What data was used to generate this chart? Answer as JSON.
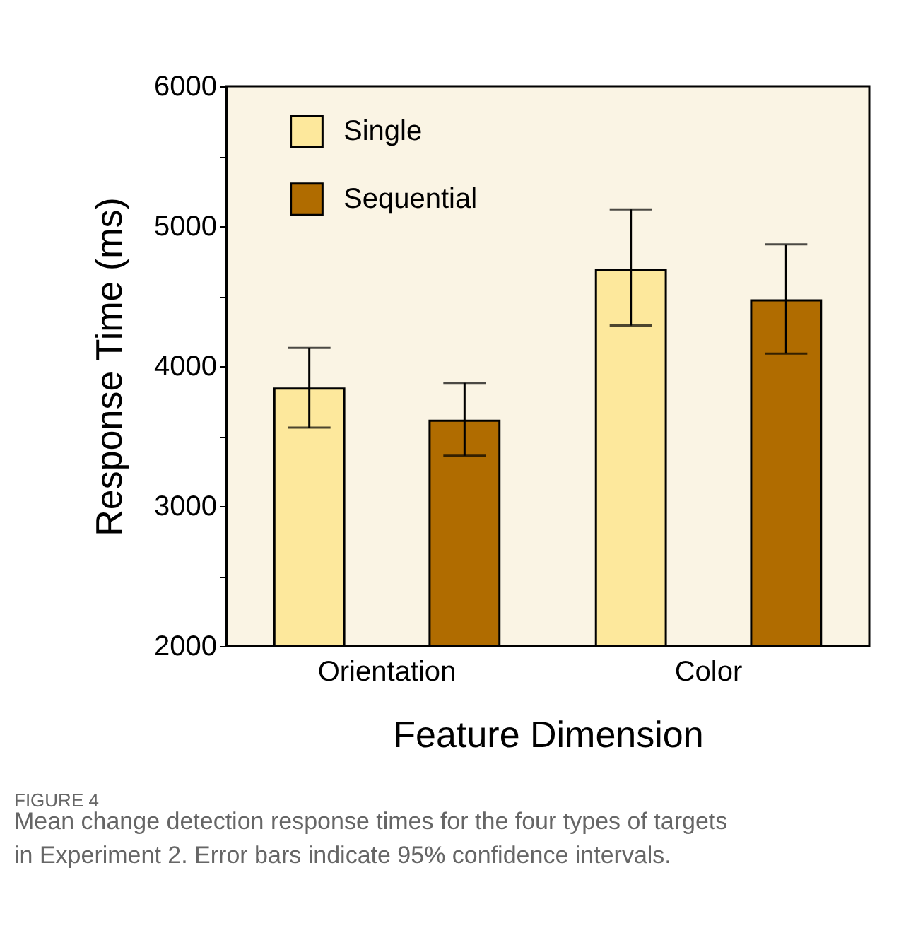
{
  "chart_data": {
    "type": "bar",
    "xlabel": "Feature Dimension",
    "ylabel": "Response Time (ms)",
    "categories": [
      "Orientation",
      "Color"
    ],
    "series": [
      {
        "name": "Single",
        "color": "#fde89c",
        "values": [
          3840,
          4690
        ],
        "errors": [
          [
            3560,
            4130
          ],
          [
            4290,
            5120
          ]
        ]
      },
      {
        "name": "Sequential",
        "color": "#b06c00",
        "values": [
          3610,
          4470
        ],
        "errors": [
          [
            3360,
            3880
          ],
          [
            4090,
            4870
          ]
        ]
      }
    ],
    "ylim": [
      2000,
      6000
    ],
    "yticks": [
      2000,
      {
        "value": 2500,
        "label": null
      },
      3000,
      {
        "value": 3500,
        "label": null
      },
      4000,
      {
        "value": 4500,
        "label": null
      },
      5000,
      {
        "value": 5500,
        "label": null
      },
      6000
    ],
    "grid": false,
    "legend": "top left",
    "annotations": [
      "FIGURE 4",
      "Mean change detection response times for the four types of targets in Experiment 2. Error bars indicate 95% confidence intervals."
    ]
  }
}
